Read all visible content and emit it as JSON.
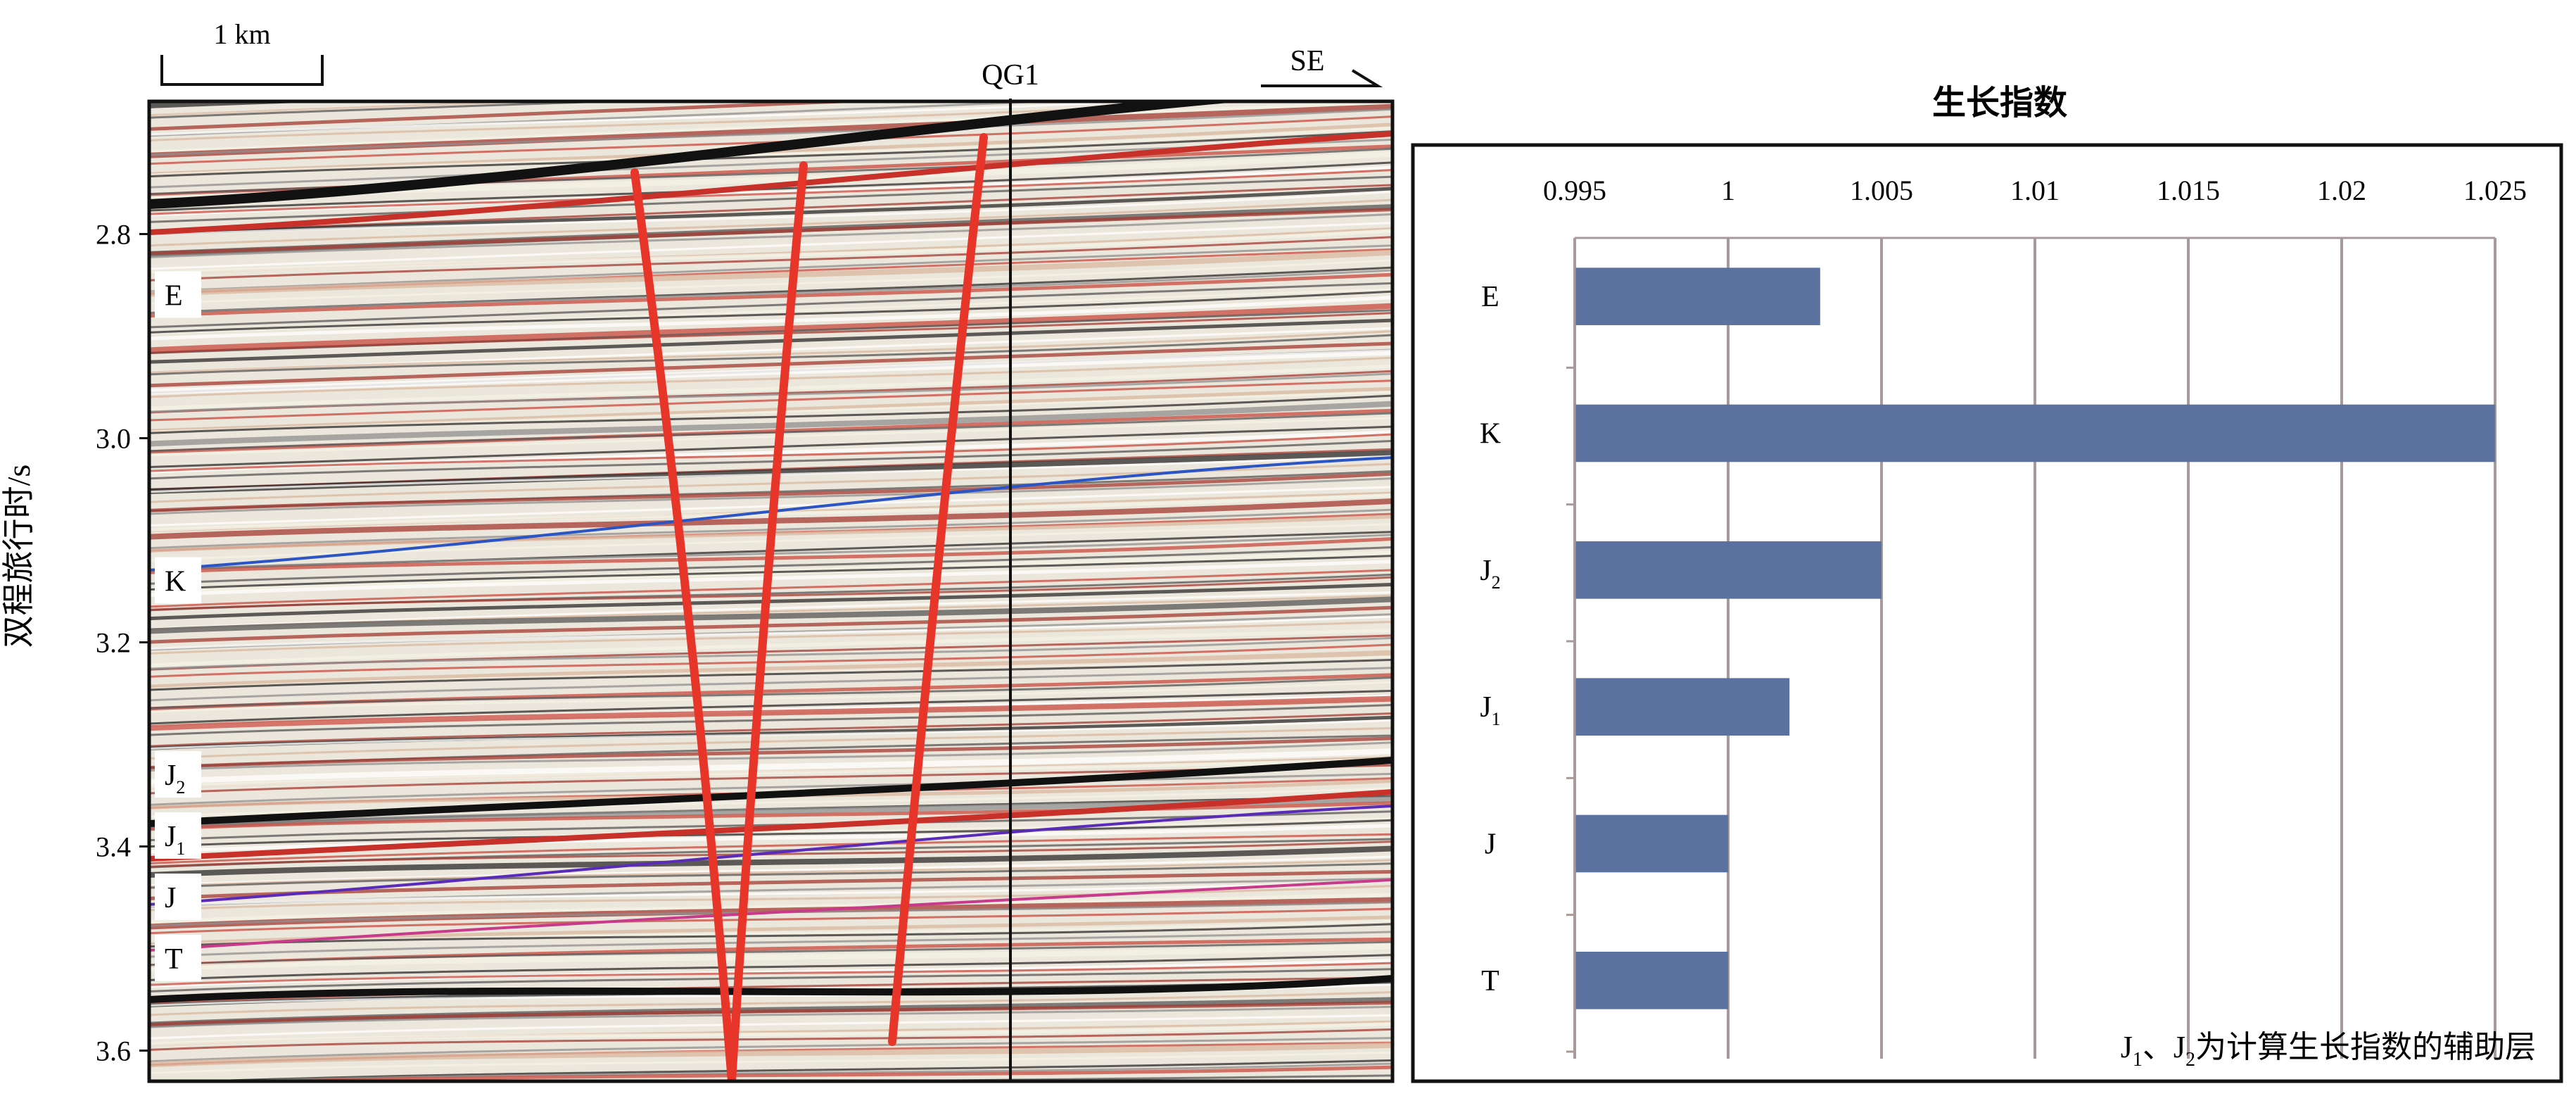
{
  "seismic": {
    "scale_bar_label": "1 km",
    "well_label": "QG1",
    "direction_label": "SE",
    "y_axis_title": "双程旅行时/s",
    "y_axis_ticks": [
      2.8,
      3.0,
      3.2,
      3.4,
      3.6
    ],
    "y_range": [
      2.67,
      3.63
    ],
    "layers": [
      {
        "label": "E",
        "sub": "",
        "time": 2.86
      },
      {
        "label": "K",
        "sub": "",
        "time": 3.14
      },
      {
        "label": "J",
        "sub": "2",
        "time": 3.33
      },
      {
        "label": "J",
        "sub": "1",
        "time": 3.39
      },
      {
        "label": "J",
        "sub": "",
        "time": 3.45
      },
      {
        "label": "T",
        "sub": "",
        "time": 3.51
      }
    ]
  },
  "chart_data": {
    "type": "bar",
    "orientation": "horizontal",
    "title": "生长指数",
    "categories": [
      "E",
      "K",
      "J2",
      "J1",
      "J",
      "T"
    ],
    "category_labels": [
      {
        "main": "E",
        "sub": ""
      },
      {
        "main": "K",
        "sub": ""
      },
      {
        "main": "J",
        "sub": "2"
      },
      {
        "main": "J",
        "sub": "1"
      },
      {
        "main": "J",
        "sub": ""
      },
      {
        "main": "T",
        "sub": ""
      }
    ],
    "values": [
      1.003,
      1.025,
      1.005,
      1.002,
      1.0,
      1.0
    ],
    "xlim": [
      0.995,
      1.025
    ],
    "x_ticks": [
      0.995,
      1,
      1.005,
      1.01,
      1.015,
      1.02,
      1.025
    ],
    "x_tick_labels": [
      "0.995",
      "1",
      "1.005",
      "1.01",
      "1.015",
      "1.02",
      "1.025"
    ],
    "grid": "vertical",
    "bar_color": "#5b71a0",
    "note": {
      "parts": [
        "J",
        "1",
        "、J",
        "2",
        "为计算生长指数的辅助层"
      ]
    }
  }
}
